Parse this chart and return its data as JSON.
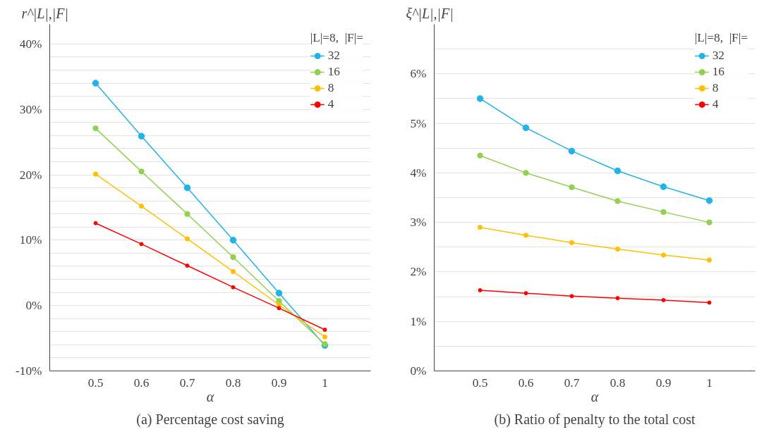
{
  "chart_data": [
    {
      "type": "line",
      "title": "(a) Percentage cost saving",
      "xlabel": "α",
      "ylabel": "r^|L|,|F|",
      "legend_title": "|L|=8,  |F|=",
      "legend": "top right",
      "grid": "y",
      "marker": "circle",
      "line_style": "solid",
      "x": [
        0.5,
        0.6,
        0.7,
        0.8,
        0.9,
        1
      ],
      "xlim": [
        0.4,
        1.1
      ],
      "xticks": [
        0.5,
        0.6,
        0.7,
        0.8,
        0.9,
        1
      ],
      "ylim": [
        -10,
        43
      ],
      "yticks": [
        {
          "value": -10,
          "label": "-10%"
        },
        {
          "value": -8,
          "label": null
        },
        {
          "value": -6,
          "label": null
        },
        {
          "value": -4,
          "label": null
        },
        {
          "value": -2,
          "label": null
        },
        {
          "value": 0,
          "label": "0%"
        },
        {
          "value": 2,
          "label": null
        },
        {
          "value": 4,
          "label": null
        },
        {
          "value": 6,
          "label": null
        },
        {
          "value": 8,
          "label": null
        },
        {
          "value": 10,
          "label": "10%"
        },
        {
          "value": 12,
          "label": null
        },
        {
          "value": 14,
          "label": null
        },
        {
          "value": 16,
          "label": null
        },
        {
          "value": 18,
          "label": null
        },
        {
          "value": 20,
          "label": "20%"
        },
        {
          "value": 22,
          "label": null
        },
        {
          "value": 24,
          "label": null
        },
        {
          "value": 26,
          "label": null
        },
        {
          "value": 28,
          "label": null
        },
        {
          "value": 30,
          "label": "30%"
        },
        {
          "value": 32,
          "label": null
        },
        {
          "value": 34,
          "label": null
        },
        {
          "value": 36,
          "label": null
        },
        {
          "value": 38,
          "label": null
        },
        {
          "value": 40,
          "label": "40%"
        }
      ],
      "series": [
        {
          "name": "32",
          "color": "#1fb3e8",
          "values": [
            34.0,
            25.9,
            18.0,
            10.0,
            1.9,
            -6.1
          ]
        },
        {
          "name": "16",
          "color": "#92d050",
          "values": [
            27.1,
            20.5,
            14.0,
            7.4,
            0.7,
            -5.9
          ]
        },
        {
          "name": "8",
          "color": "#ffc000",
          "values": [
            20.1,
            15.2,
            10.2,
            5.2,
            0.1,
            -4.8
          ]
        },
        {
          "name": "4",
          "color": "#ff0000",
          "values": [
            12.6,
            9.4,
            6.1,
            2.8,
            -0.4,
            -3.7
          ]
        }
      ]
    },
    {
      "type": "line",
      "title": "(b) Ratio of penalty to the total cost",
      "xlabel": "α",
      "ylabel": "ξ^|L|,|F|",
      "legend_title": "|L|=8,  |F|=",
      "legend": "top right",
      "grid": "y",
      "marker": "circle",
      "line_style": "solid",
      "x": [
        0.5,
        0.6,
        0.7,
        0.8,
        0.9,
        1
      ],
      "xlim": [
        0.4,
        1.1
      ],
      "xticks": [
        0.5,
        0.6,
        0.7,
        0.8,
        0.9,
        1
      ],
      "ylim": [
        0,
        7
      ],
      "yticks": [
        {
          "value": 0,
          "label": "0%"
        },
        {
          "value": 0.5,
          "label": null
        },
        {
          "value": 1,
          "label": "1%"
        },
        {
          "value": 1.5,
          "label": null
        },
        {
          "value": 2,
          "label": "2%"
        },
        {
          "value": 2.5,
          "label": null
        },
        {
          "value": 3,
          "label": "3%"
        },
        {
          "value": 3.5,
          "label": null
        },
        {
          "value": 4,
          "label": "4%"
        },
        {
          "value": 4.5,
          "label": null
        },
        {
          "value": 5,
          "label": "5%"
        },
        {
          "value": 5.5,
          "label": null
        },
        {
          "value": 6,
          "label": "6%"
        },
        {
          "value": 6.5,
          "label": null
        }
      ],
      "series": [
        {
          "name": "32",
          "color": "#1fb3e8",
          "values": [
            5.5,
            4.91,
            4.44,
            4.04,
            3.72,
            3.44
          ]
        },
        {
          "name": "16",
          "color": "#92d050",
          "values": [
            4.35,
            4.0,
            3.71,
            3.43,
            3.21,
            3.0
          ]
        },
        {
          "name": "8",
          "color": "#ffc000",
          "values": [
            2.9,
            2.74,
            2.59,
            2.46,
            2.34,
            2.24
          ]
        },
        {
          "name": "4",
          "color": "#ff0000",
          "values": [
            1.63,
            1.57,
            1.51,
            1.47,
            1.43,
            1.38
          ]
        }
      ]
    }
  ]
}
